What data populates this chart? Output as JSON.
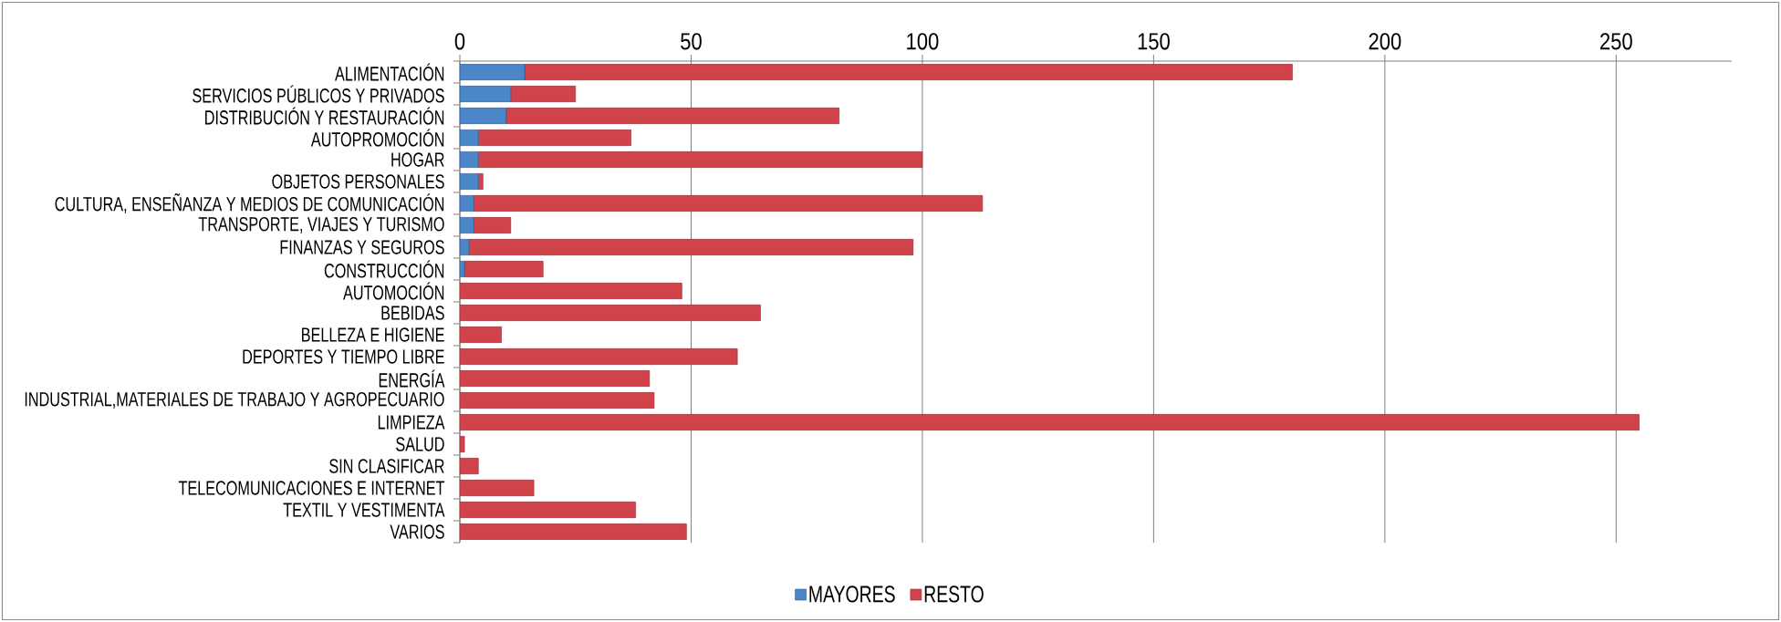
{
  "chart_data": {
    "type": "bar",
    "orientation": "horizontal",
    "stacked": true,
    "categories": [
      "ALIMENTACIÓN",
      "SERVICIOS PÚBLICOS Y PRIVADOS",
      "DISTRIBUCIÓN Y RESTAURACIÓN",
      "AUTOPROMOCIÓN",
      "HOGAR",
      "OBJETOS PERSONALES",
      "CULTURA, ENSEÑANZA Y MEDIOS DE COMUNICACIÓN",
      "TRANSPORTE, VIAJES Y TURISMO",
      "FINANZAS Y SEGUROS",
      "CONSTRUCCIÓN",
      "AUTOMOCIÓN",
      "BEBIDAS",
      "BELLEZA E HIGIENE",
      "DEPORTES Y TIEMPO LIBRE",
      "ENERGÍA",
      "INDUSTRIAL,MATERIALES DE TRABAJO Y AGROPECUARIO",
      "LIMPIEZA",
      "SALUD",
      "SIN CLASIFICAR",
      "TELECOMUNICACIONES E INTERNET",
      "TEXTIL Y VESTIMENTA",
      "VARIOS"
    ],
    "series": [
      {
        "name": "MAYORES",
        "color": "#4a86c8",
        "values": [
          14,
          11,
          10,
          4,
          4,
          4,
          3,
          3,
          2,
          1,
          null,
          null,
          null,
          null,
          null,
          null,
          null,
          null,
          null,
          null,
          null,
          null
        ]
      },
      {
        "name": "RESTO",
        "color": "#d0434a",
        "values": [
          166,
          14,
          72,
          33,
          96,
          1,
          110,
          8,
          96,
          17,
          48,
          65,
          9,
          60,
          41,
          42,
          255,
          1,
          4,
          16,
          38,
          49
        ]
      }
    ],
    "xlim": [
      0,
      275
    ],
    "xticks": [
      0,
      50,
      100,
      150,
      200,
      250
    ],
    "grid": "x",
    "legend": "bottom"
  }
}
